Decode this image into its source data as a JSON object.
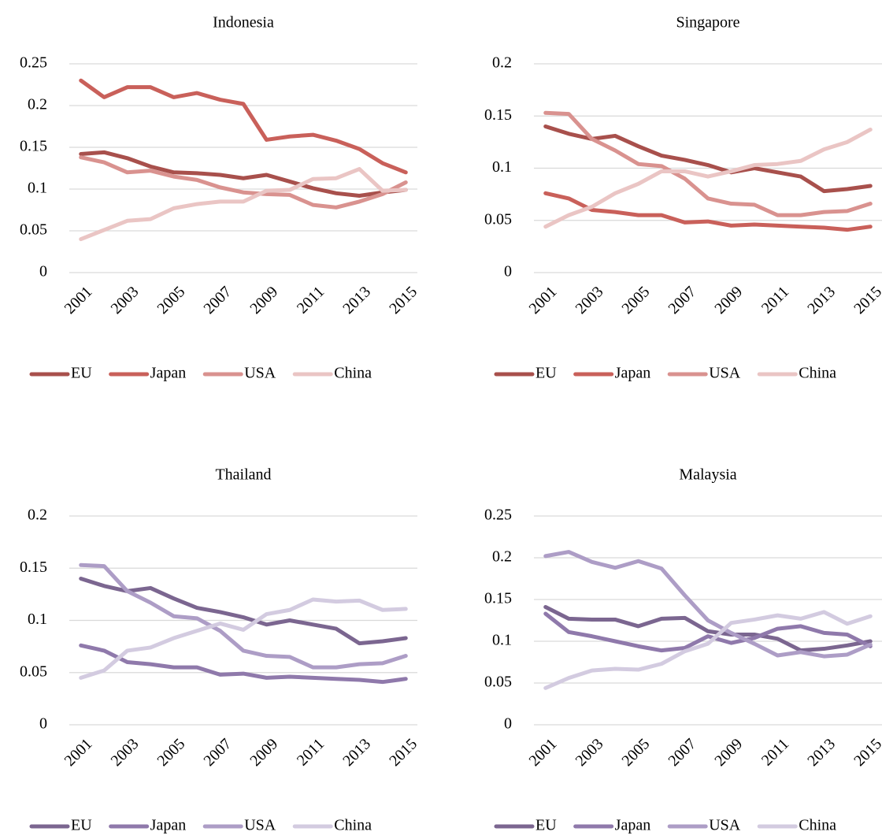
{
  "chart_data": [
    {
      "type": "line",
      "title": "Indonesia",
      "x": [
        2001,
        2002,
        2003,
        2004,
        2005,
        2006,
        2007,
        2008,
        2009,
        2010,
        2011,
        2012,
        2013,
        2014,
        2015
      ],
      "xlim": [
        2000.5,
        2015.5
      ],
      "xticks": [
        2001,
        2003,
        2005,
        2007,
        2009,
        2011,
        2013,
        2015
      ],
      "ylim": [
        0,
        0.25
      ],
      "yticks": [
        0,
        0.05,
        0.1,
        0.15,
        0.2,
        0.25
      ],
      "grid": true,
      "legend": "bottom",
      "series": [
        {
          "name": "EU",
          "color": "#a8504c",
          "values": [
            0.142,
            0.144,
            0.137,
            0.127,
            0.12,
            0.119,
            0.117,
            0.113,
            0.117,
            0.109,
            0.101,
            0.095,
            0.092,
            0.096,
            0.099
          ]
        },
        {
          "name": "Japan",
          "color": "#c9605a",
          "values": [
            0.23,
            0.21,
            0.222,
            0.222,
            0.21,
            0.215,
            0.207,
            0.202,
            0.159,
            0.163,
            0.165,
            0.158,
            0.148,
            0.131,
            0.12
          ]
        },
        {
          "name": "USA",
          "color": "#d9928f",
          "values": [
            0.138,
            0.132,
            0.12,
            0.122,
            0.115,
            0.111,
            0.102,
            0.096,
            0.094,
            0.093,
            0.081,
            0.078,
            0.085,
            0.094,
            0.108
          ]
        },
        {
          "name": "China",
          "color": "#eac5c4",
          "values": [
            0.04,
            0.051,
            0.062,
            0.064,
            0.077,
            0.082,
            0.085,
            0.085,
            0.098,
            0.099,
            0.112,
            0.113,
            0.124,
            0.098,
            0.099
          ]
        }
      ]
    },
    {
      "type": "line",
      "title": "Singapore",
      "x": [
        2001,
        2002,
        2003,
        2004,
        2005,
        2006,
        2007,
        2008,
        2009,
        2010,
        2011,
        2012,
        2013,
        2014,
        2015
      ],
      "xlim": [
        2000.5,
        2015.5
      ],
      "xticks": [
        2001,
        2003,
        2005,
        2007,
        2009,
        2011,
        2013,
        2015
      ],
      "ylim": [
        0,
        0.2
      ],
      "yticks": [
        0,
        0.05,
        0.1,
        0.15,
        0.2
      ],
      "grid": true,
      "legend": "bottom",
      "series": [
        {
          "name": "EU",
          "color": "#a8504c",
          "values": [
            0.14,
            0.133,
            0.128,
            0.131,
            0.121,
            0.112,
            0.108,
            0.103,
            0.096,
            0.1,
            0.096,
            0.092,
            0.078,
            0.08,
            0.083
          ]
        },
        {
          "name": "Japan",
          "color": "#c9605a",
          "values": [
            0.076,
            0.071,
            0.06,
            0.058,
            0.055,
            0.055,
            0.048,
            0.049,
            0.045,
            0.046,
            0.045,
            0.044,
            0.043,
            0.041,
            0.044
          ]
        },
        {
          "name": "USA",
          "color": "#d9928f",
          "values": [
            0.153,
            0.152,
            0.128,
            0.117,
            0.104,
            0.102,
            0.09,
            0.071,
            0.066,
            0.065,
            0.055,
            0.055,
            0.058,
            0.059,
            0.066
          ]
        },
        {
          "name": "China",
          "color": "#eac5c4",
          "values": [
            0.044,
            0.055,
            0.063,
            0.076,
            0.085,
            0.097,
            0.097,
            0.092,
            0.097,
            0.103,
            0.104,
            0.107,
            0.118,
            0.125,
            0.137
          ]
        }
      ]
    },
    {
      "type": "line",
      "title": "Thailand",
      "x": [
        2001,
        2002,
        2003,
        2004,
        2005,
        2006,
        2007,
        2008,
        2009,
        2010,
        2011,
        2012,
        2013,
        2014,
        2015
      ],
      "xlim": [
        2000.5,
        2015.5
      ],
      "xticks": [
        2001,
        2003,
        2005,
        2007,
        2009,
        2011,
        2013,
        2015
      ],
      "ylim": [
        0,
        0.2
      ],
      "yticks": [
        0,
        0.05,
        0.1,
        0.15,
        0.2
      ],
      "grid": true,
      "legend": "bottom",
      "series": [
        {
          "name": "EU",
          "color": "#7b6690",
          "values": [
            0.14,
            0.133,
            0.128,
            0.131,
            0.121,
            0.112,
            0.108,
            0.103,
            0.096,
            0.1,
            0.096,
            0.092,
            0.078,
            0.08,
            0.083
          ]
        },
        {
          "name": "Japan",
          "color": "#8f79ab",
          "values": [
            0.076,
            0.071,
            0.06,
            0.058,
            0.055,
            0.055,
            0.048,
            0.049,
            0.045,
            0.046,
            0.045,
            0.044,
            0.043,
            0.041,
            0.044
          ]
        },
        {
          "name": "USA",
          "color": "#ad9dc6",
          "values": [
            0.153,
            0.152,
            0.128,
            0.117,
            0.104,
            0.102,
            0.09,
            0.071,
            0.066,
            0.065,
            0.055,
            0.055,
            0.058,
            0.059,
            0.066
          ]
        },
        {
          "name": "China",
          "color": "#d3cbe0",
          "values": [
            0.045,
            0.052,
            0.071,
            0.074,
            0.083,
            0.09,
            0.097,
            0.091,
            0.106,
            0.11,
            0.12,
            0.118,
            0.119,
            0.11,
            0.111
          ]
        }
      ]
    },
    {
      "type": "line",
      "title": "Malaysia",
      "x": [
        2001,
        2002,
        2003,
        2004,
        2005,
        2006,
        2007,
        2008,
        2009,
        2010,
        2011,
        2012,
        2013,
        2014,
        2015
      ],
      "xlim": [
        2000.5,
        2015.5
      ],
      "xticks": [
        2001,
        2003,
        2005,
        2007,
        2009,
        2011,
        2013,
        2015
      ],
      "ylim": [
        0,
        0.25
      ],
      "yticks": [
        0,
        0.05,
        0.1,
        0.15,
        0.2,
        0.25
      ],
      "grid": true,
      "legend": "bottom",
      "series": [
        {
          "name": "EU",
          "color": "#7b6690",
          "values": [
            0.141,
            0.127,
            0.126,
            0.126,
            0.118,
            0.127,
            0.128,
            0.112,
            0.108,
            0.108,
            0.103,
            0.089,
            0.091,
            0.095,
            0.1
          ]
        },
        {
          "name": "Japan",
          "color": "#8f79ab",
          "values": [
            0.133,
            0.111,
            0.106,
            0.1,
            0.094,
            0.089,
            0.092,
            0.106,
            0.098,
            0.104,
            0.115,
            0.118,
            0.11,
            0.108,
            0.094
          ]
        },
        {
          "name": "USA",
          "color": "#ad9dc6",
          "values": [
            0.202,
            0.207,
            0.195,
            0.188,
            0.196,
            0.187,
            0.155,
            0.125,
            0.11,
            0.097,
            0.083,
            0.087,
            0.082,
            0.084,
            0.096
          ]
        },
        {
          "name": "China",
          "color": "#d3cbe0",
          "values": [
            0.044,
            0.056,
            0.065,
            0.067,
            0.066,
            0.073,
            0.088,
            0.097,
            0.122,
            0.126,
            0.131,
            0.127,
            0.135,
            0.121,
            0.13
          ]
        }
      ]
    }
  ]
}
